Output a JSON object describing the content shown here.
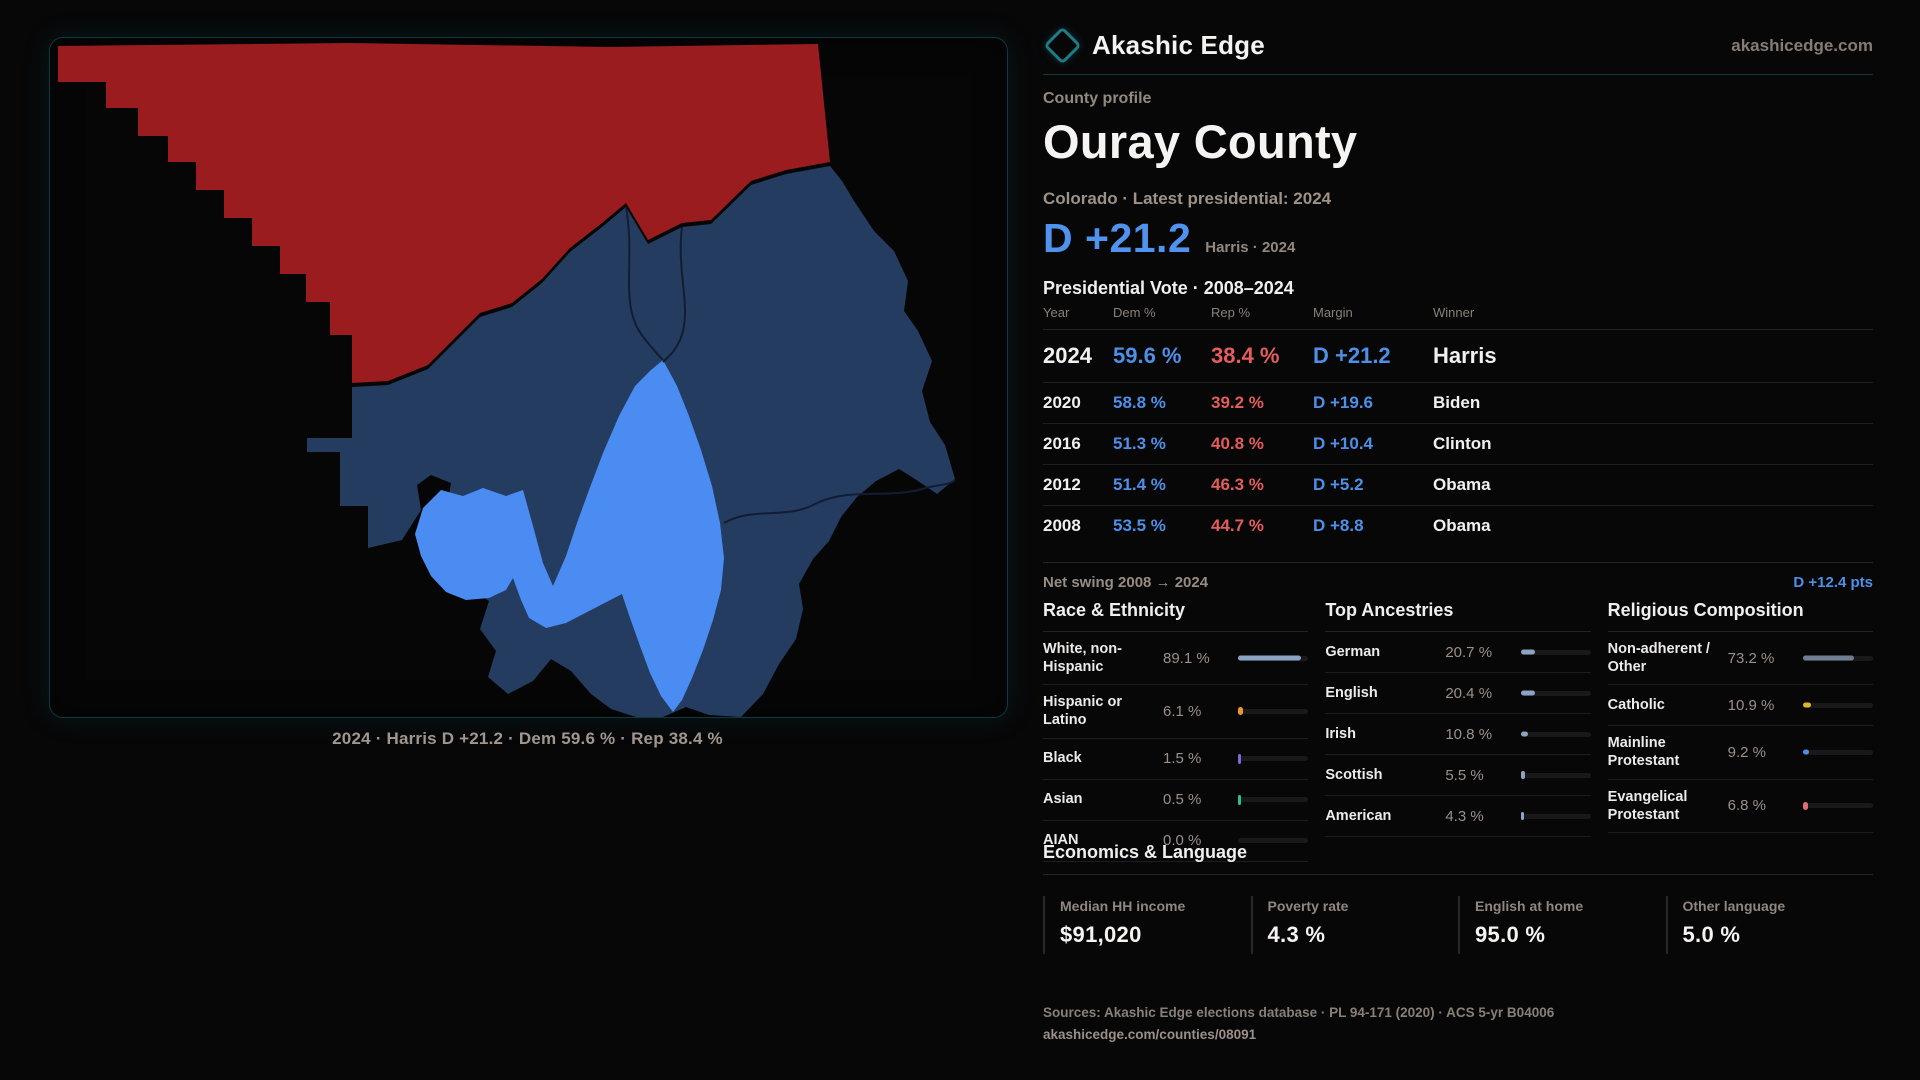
{
  "brand": {
    "name": "Akashic Edge",
    "domain": "akashicedge.com"
  },
  "header": {
    "eyebrow": "County profile",
    "title": "Ouray County",
    "subtitle": "Colorado · Latest presidential: 2024"
  },
  "headline": {
    "margin": "D +21.2",
    "note": "Harris · 2024"
  },
  "table": {
    "title": "Presidential Vote · 2008–2024",
    "columns": [
      "Year",
      "Dem %",
      "Rep %",
      "Margin",
      "Winner"
    ],
    "rows": [
      {
        "year": "2024",
        "dem": "59.6 %",
        "rep": "38.4 %",
        "margin": "D +21.2",
        "winner": "Harris",
        "featured": true
      },
      {
        "year": "2020",
        "dem": "58.8 %",
        "rep": "39.2 %",
        "margin": "D +19.6",
        "winner": "Biden"
      },
      {
        "year": "2016",
        "dem": "51.3 %",
        "rep": "40.8 %",
        "margin": "D +10.4",
        "winner": "Clinton"
      },
      {
        "year": "2012",
        "dem": "51.4 %",
        "rep": "46.3 %",
        "margin": "D +5.2",
        "winner": "Obama"
      },
      {
        "year": "2008",
        "dem": "53.5 %",
        "rep": "44.7 %",
        "margin": "D +8.8",
        "winner": "Obama"
      }
    ]
  },
  "net_swing": {
    "label": "Net swing 2008 → 2024",
    "value": "D +12.4 pts"
  },
  "demographics": [
    {
      "title": "Race & Ethnicity",
      "rows": [
        {
          "label": "White, non-Hispanic",
          "value": "89.1 %",
          "pct": 89.1,
          "color": "#8ba4c4"
        },
        {
          "label": "Hispanic or Latino",
          "value": "6.1 %",
          "pct": 6.1,
          "color": "#e8992e"
        },
        {
          "label": "Black",
          "value": "1.5 %",
          "pct": 1.5,
          "color": "#7a6cd6"
        },
        {
          "label": "Asian",
          "value": "0.5 %",
          "pct": 0.5,
          "color": "#2fbf8f"
        },
        {
          "label": "AIAN",
          "value": "0.0 %",
          "pct": 0,
          "color": "#8ba4c4"
        }
      ]
    },
    {
      "title": "Top Ancestries",
      "rows": [
        {
          "label": "German",
          "value": "20.7 %",
          "pct": 20.7,
          "color": "#8ba4c4"
        },
        {
          "label": "English",
          "value": "20.4 %",
          "pct": 20.4,
          "color": "#8ba4c4"
        },
        {
          "label": "Irish",
          "value": "10.8 %",
          "pct": 10.8,
          "color": "#8ba4c4"
        },
        {
          "label": "Scottish",
          "value": "5.5 %",
          "pct": 5.5,
          "color": "#8ba4c4"
        },
        {
          "label": "American",
          "value": "4.3 %",
          "pct": 4.3,
          "color": "#8ba4c4"
        }
      ]
    },
    {
      "title": "Religious Composition",
      "rows": [
        {
          "label": "Non-adherent / Other",
          "value": "73.2 %",
          "pct": 73.2,
          "color": "#6f7d93"
        },
        {
          "label": "Catholic",
          "value": "10.9 %",
          "pct": 10.9,
          "color": "#e0b22d"
        },
        {
          "label": "Mainline Protestant",
          "value": "9.2 %",
          "pct": 9.2,
          "color": "#4a90e2"
        },
        {
          "label": "Evangelical Protestant",
          "value": "6.8 %",
          "pct": 6.8,
          "color": "#e06c6c"
        }
      ]
    }
  ],
  "economics": {
    "title": "Economics & Language",
    "stats": [
      {
        "label": "Median HH income",
        "value": "$91,020"
      },
      {
        "label": "Poverty rate",
        "value": "4.3 %"
      },
      {
        "label": "English at home",
        "value": "95.0 %"
      },
      {
        "label": "Other language",
        "value": "5.0 %"
      }
    ]
  },
  "map": {
    "caption": "2024 · Harris D +21.2 · Dem 59.6 % · Rep 38.4 %",
    "region_colors": {
      "republican": "#9b1c1e",
      "democratic_dark": "#243c60",
      "selected_county": "#4a8cf2",
      "boundary_line": "#121d33"
    }
  },
  "footer": {
    "sources": "Sources: Akashic Edge elections database · PL 94-171 (2020) · ACS 5-yr B04006",
    "permalink": "akashicedge.com/counties/08091"
  },
  "colors": {
    "dem_blue": "#4e8fe8",
    "rep_red": "#e45c5c",
    "accent_teal": "#1d7c85"
  }
}
